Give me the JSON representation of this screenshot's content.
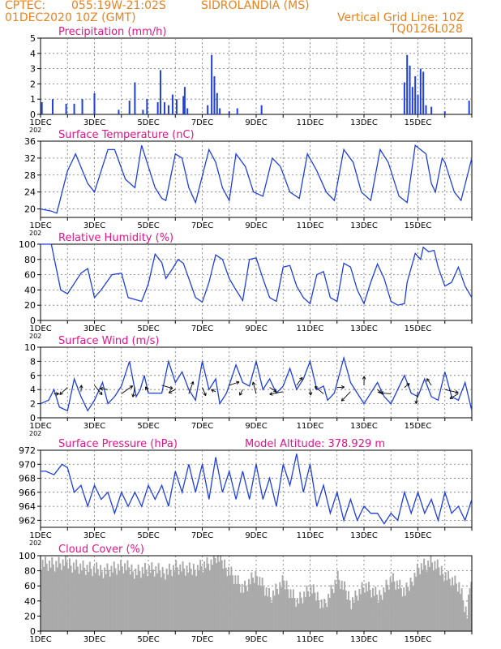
{
  "header": {
    "source": "CPTEC:",
    "location": "055:19W-21:02S",
    "station": "SIDROLANDIA (MS)",
    "run": "01DEC2020 10Z (GMT)",
    "grid_note": "Vertical Grid Line: 10Z",
    "model": "TQ0126L028"
  },
  "colors": {
    "header": "#e8821e",
    "title": "#e0148c",
    "line": "#1f3fe0",
    "bar": "#1f3fe0",
    "cloud": "#aaaaaa",
    "arrow": "#000000"
  },
  "x_ticks": [
    "1DEC",
    "3DEC",
    "5DEC",
    "7DEC",
    "9DEC",
    "11DEC",
    "13DEC",
    "15DEC"
  ],
  "year_stub": "202",
  "chart_data": [
    {
      "id": "precip",
      "type": "bar",
      "title": "Precipitation (mm/h)",
      "ylim": [
        0,
        5
      ],
      "yticks": [
        0,
        1,
        2,
        3,
        4,
        5
      ],
      "x_units": "days since 01DEC 10Z",
      "x": [
        0.05,
        0.45,
        0.95,
        1.25,
        1.55,
        2.0,
        2.9,
        3.3,
        3.5,
        3.8,
        3.95,
        4.35,
        4.45,
        4.6,
        4.75,
        4.9,
        5.05,
        5.3,
        5.35,
        5.45,
        6.2,
        6.35,
        6.45,
        6.55,
        6.65,
        7.0,
        7.3,
        8.2,
        13.5,
        13.6,
        13.7,
        13.8,
        13.9,
        14.0,
        14.1,
        14.2,
        14.3,
        14.5,
        15.0,
        15.9
      ],
      "values": [
        0.8,
        1.0,
        0.7,
        0.7,
        1.0,
        1.4,
        0.3,
        0.9,
        2.1,
        0.3,
        1.0,
        0.8,
        2.9,
        0.8,
        0.6,
        1.3,
        1.0,
        1.2,
        1.8,
        0.4,
        0.6,
        3.9,
        2.5,
        1.4,
        0.4,
        0.2,
        0.4,
        0.6,
        2.1,
        3.9,
        3.2,
        1.8,
        2.5,
        1.3,
        3.0,
        2.8,
        0.6,
        0.5,
        0.2,
        0.9
      ]
    },
    {
      "id": "temp",
      "type": "line",
      "title": "Surface Temperature (nC)",
      "ylim": [
        18,
        36
      ],
      "yticks": [
        20,
        24,
        28,
        32,
        36
      ],
      "x_units": "days since 01DEC 10Z",
      "x": [
        0,
        0.4,
        0.6,
        1.0,
        1.3,
        1.75,
        2.0,
        2.5,
        2.75,
        3.15,
        3.5,
        3.75,
        4.25,
        4.5,
        4.65,
        5.0,
        5.25,
        5.5,
        5.75,
        6.25,
        6.5,
        6.75,
        7.0,
        7.25,
        7.6,
        7.9,
        8.25,
        8.6,
        8.9,
        9.25,
        9.6,
        9.9,
        10.25,
        10.6,
        10.9,
        11.25,
        11.6,
        11.9,
        12.25,
        12.6,
        12.9,
        13.3,
        13.6,
        13.9,
        14.3,
        14.5,
        14.65,
        14.9,
        15.0,
        15.35,
        15.6,
        16.0
      ],
      "values": [
        20,
        19.5,
        19,
        29,
        33,
        26,
        24,
        34,
        34,
        27,
        25,
        35,
        25,
        22.5,
        22,
        33,
        32,
        25,
        21.5,
        34,
        31,
        25,
        22,
        33,
        30,
        24,
        23,
        32,
        30,
        24,
        22.5,
        33,
        29,
        24,
        22,
        34,
        31,
        24,
        22,
        34,
        31,
        23,
        21.5,
        35,
        33,
        26,
        24,
        32,
        31,
        24,
        22,
        32
      ]
    },
    {
      "id": "rh",
      "type": "line",
      "title": "Relative Humidity (%)",
      "ylim": [
        0,
        100
      ],
      "yticks": [
        0,
        20,
        40,
        60,
        80,
        100
      ],
      "x_units": "days since 01DEC 10Z",
      "x": [
        0,
        0.4,
        0.75,
        1.0,
        1.5,
        1.75,
        2.0,
        2.25,
        2.65,
        3.0,
        3.25,
        3.75,
        4.0,
        4.25,
        4.5,
        4.65,
        4.9,
        5.1,
        5.3,
        5.5,
        5.75,
        6.0,
        6.25,
        6.5,
        6.75,
        7.0,
        7.25,
        7.5,
        7.75,
        8.0,
        8.25,
        8.5,
        8.75,
        9.0,
        9.25,
        9.5,
        9.75,
        10.0,
        10.25,
        10.5,
        10.75,
        11.0,
        11.25,
        11.5,
        11.75,
        12.0,
        12.25,
        12.5,
        12.75,
        13.0,
        13.25,
        13.5,
        13.6,
        13.9,
        14.1,
        14.2,
        14.4,
        14.6,
        14.75,
        15.0,
        15.25,
        15.5,
        15.75,
        16.0
      ],
      "values": [
        100,
        100,
        40,
        35,
        62,
        68,
        30,
        40,
        60,
        62,
        30,
        25,
        48,
        87,
        76,
        55,
        68,
        80,
        75,
        55,
        30,
        24,
        50,
        86,
        80,
        55,
        40,
        26,
        80,
        82,
        55,
        30,
        25,
        70,
        72,
        45,
        30,
        22,
        60,
        64,
        30,
        25,
        75,
        70,
        40,
        22,
        50,
        74,
        55,
        25,
        20,
        22,
        50,
        88,
        80,
        96,
        90,
        92,
        70,
        45,
        50,
        70,
        45,
        30
      ]
    },
    {
      "id": "wind",
      "type": "line",
      "title": "Surface Wind (m/s)",
      "ylim": [
        0,
        10
      ],
      "yticks": [
        0,
        2,
        4,
        6,
        8,
        10
      ],
      "x_units": "days since 01DEC 10Z",
      "x": [
        0,
        0.3,
        0.5,
        0.7,
        1.0,
        1.25,
        1.5,
        1.75,
        2.0,
        2.3,
        2.5,
        2.75,
        3.0,
        3.3,
        3.55,
        3.7,
        3.85,
        4.0,
        4.5,
        4.75,
        5.0,
        5.25,
        5.5,
        5.75,
        6.0,
        6.25,
        6.5,
        6.65,
        6.9,
        7.25,
        7.5,
        7.75,
        8.0,
        8.25,
        8.5,
        8.75,
        9.0,
        9.25,
        9.5,
        9.75,
        10.0,
        10.25,
        10.5,
        10.65,
        10.9,
        11.25,
        11.5,
        11.75,
        12.0,
        12.5,
        12.75,
        13.0,
        13.25,
        13.5,
        13.75,
        14.0,
        14.25,
        14.5,
        14.75,
        15.0,
        15.25,
        15.5,
        15.75,
        16.0
      ],
      "values": [
        2,
        2.5,
        4.0,
        1.5,
        1.0,
        5.5,
        3.0,
        1.0,
        2.5,
        5.0,
        2.0,
        3.0,
        4.5,
        8.0,
        3.0,
        4.0,
        6.0,
        3.5,
        3.5,
        8.0,
        5.0,
        6.5,
        4.0,
        2.5,
        8.0,
        4.0,
        5.5,
        2.0,
        3.5,
        7.5,
        5.0,
        4.5,
        8.0,
        4.0,
        5.5,
        3.5,
        4.5,
        7.0,
        4.0,
        5.5,
        8.0,
        4.0,
        4.5,
        2.5,
        3.5,
        8.5,
        5.0,
        3.5,
        2.0,
        5.0,
        3.0,
        2.0,
        4.0,
        6.0,
        3.5,
        3.0,
        5.5,
        3.0,
        2.5,
        6.5,
        3.0,
        2.5,
        5.0,
        1.0
      ]
    },
    {
      "id": "pressure",
      "type": "line",
      "title": "Surface Pressure (hPa)",
      "annotation": "Model Altitude: 378.929 m",
      "ylim": [
        961,
        972
      ],
      "yticks": [
        962,
        964,
        966,
        968,
        970,
        972
      ],
      "x_units": "days since 01DEC 10Z",
      "x": [
        0,
        0.2,
        0.5,
        0.8,
        1.0,
        1.25,
        1.5,
        1.75,
        2.0,
        2.25,
        2.5,
        2.75,
        3.0,
        3.25,
        3.5,
        3.75,
        4.0,
        4.25,
        4.5,
        4.75,
        5.0,
        5.25,
        5.5,
        5.75,
        6.0,
        6.25,
        6.5,
        6.75,
        7.0,
        7.25,
        7.5,
        7.75,
        8.0,
        8.25,
        8.5,
        8.75,
        9.0,
        9.25,
        9.5,
        9.75,
        10.0,
        10.25,
        10.5,
        10.75,
        11.0,
        11.25,
        11.5,
        11.75,
        12.0,
        12.25,
        12.5,
        12.75,
        13.0,
        13.25,
        13.5,
        13.75,
        14.0,
        14.25,
        14.5,
        14.75,
        15.0,
        15.25,
        15.5,
        15.75,
        16.0
      ],
      "values": [
        969,
        969,
        968.5,
        970,
        969.5,
        966,
        967,
        964,
        967,
        965,
        966,
        963,
        966,
        964,
        966,
        964,
        967,
        965,
        967,
        964,
        969,
        966,
        970,
        966,
        970,
        965,
        971,
        966,
        969,
        965,
        969,
        965,
        970,
        965,
        968,
        964,
        970,
        967,
        971.5,
        966,
        970,
        964,
        967,
        963,
        966,
        962,
        965,
        962,
        964,
        963,
        963,
        961.5,
        963,
        962,
        966,
        963,
        966,
        963,
        965,
        962,
        966,
        963,
        964,
        962,
        965
      ]
    },
    {
      "id": "cloud",
      "type": "area",
      "title": "Cloud Cover (%)",
      "ylim": [
        0,
        100
      ],
      "yticks": [
        0,
        20,
        40,
        60,
        80,
        100
      ],
      "x_units": "days since 01DEC 10Z",
      "x": [
        0,
        0.5,
        1.0,
        1.5,
        2.0,
        2.5,
        3.0,
        3.5,
        4.0,
        4.5,
        5.0,
        5.5,
        6.0,
        6.3,
        6.5,
        6.7,
        7.0,
        7.5,
        8.0,
        8.5,
        9.0,
        9.5,
        10.0,
        10.5,
        11.0,
        11.5,
        12.0,
        12.5,
        13.0,
        13.5,
        14.0,
        14.5,
        15.0,
        15.5,
        15.8,
        16.0
      ],
      "values": [
        92,
        88,
        90,
        85,
        80,
        82,
        85,
        80,
        82,
        78,
        85,
        80,
        88,
        90,
        98,
        92,
        80,
        55,
        75,
        45,
        65,
        40,
        55,
        35,
        70,
        40,
        60,
        45,
        70,
        50,
        85,
        90,
        75,
        60,
        20,
        90
      ]
    }
  ]
}
